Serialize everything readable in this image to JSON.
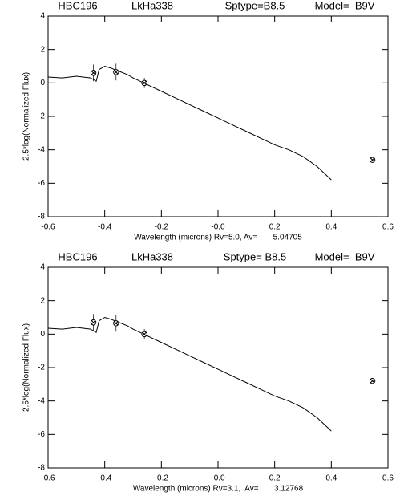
{
  "chart_data": [
    {
      "type": "line",
      "labels": [
        "HBC196",
        "LkHa338",
        "Sptype=B8.5",
        "Model=  B9V"
      ],
      "xlabel": "Wavelength (microns) Rv=5.0, Av=       5.04705",
      "ylabel": "2.5*log(Normalized Flux)",
      "xlim": [
        -0.6,
        0.6
      ],
      "ylim": [
        -8,
        4
      ],
      "xticks": [
        -0.6,
        -0.4,
        -0.2,
        {
          "value": 0,
          "label": "-0.0"
        },
        0.2,
        0.4,
        0.6
      ],
      "yticks": [
        -8,
        -6,
        -4,
        -2,
        0,
        2,
        4
      ],
      "color": "#000000",
      "spectrum": {
        "x": [
          -0.6,
          -0.55,
          -0.5,
          -0.45,
          -0.43,
          -0.42,
          -0.4,
          -0.38,
          -0.35,
          -0.32,
          -0.3,
          -0.25,
          -0.2,
          -0.15,
          -0.1,
          -0.05,
          0,
          0.05,
          0.1,
          0.15,
          0.2,
          0.25,
          0.3,
          0.35,
          0.4
        ],
        "values": [
          0.35,
          0.3,
          0.4,
          0.3,
          0.1,
          0.8,
          1.0,
          0.9,
          0.7,
          0.5,
          0.3,
          -0.1,
          -0.5,
          -0.9,
          -1.3,
          -1.7,
          -2.1,
          -2.5,
          -2.9,
          -3.3,
          -3.7,
          -4.0,
          -4.4,
          -5.0,
          -5.8
        ]
      },
      "points": {
        "x": [
          -0.44,
          -0.36,
          -0.26,
          0.545
        ],
        "values": [
          0.6,
          0.65,
          0.0,
          -4.6
        ],
        "errors": [
          0.5,
          0.5,
          0.3,
          0.1
        ]
      }
    },
    {
      "type": "line",
      "labels": [
        "HBC196",
        "LkHa338",
        "Sptype= B8.5",
        "Model=  B9V"
      ],
      "xlabel": "Wavelength (microns) Rv=3.1,  Av=       3.12768",
      "ylabel": "2.5*log(Normalized Flux)",
      "xlim": [
        -0.6,
        0.6
      ],
      "ylim": [
        -8,
        4
      ],
      "xticks": [
        -0.6,
        -0.4,
        -0.2,
        {
          "value": 0,
          "label": "-0.0"
        },
        0.2,
        0.4,
        0.6
      ],
      "yticks": [
        -8,
        -6,
        -4,
        -2,
        0,
        2,
        4
      ],
      "color": "#000000",
      "spectrum": {
        "x": [
          -0.6,
          -0.55,
          -0.5,
          -0.45,
          -0.43,
          -0.42,
          -0.4,
          -0.38,
          -0.35,
          -0.32,
          -0.3,
          -0.25,
          -0.2,
          -0.15,
          -0.1,
          -0.05,
          0,
          0.05,
          0.1,
          0.15,
          0.2,
          0.25,
          0.3,
          0.35,
          0.4
        ],
        "values": [
          0.35,
          0.3,
          0.4,
          0.3,
          0.1,
          0.8,
          1.0,
          0.9,
          0.7,
          0.5,
          0.3,
          -0.1,
          -0.5,
          -0.9,
          -1.3,
          -1.7,
          -2.1,
          -2.5,
          -2.9,
          -3.3,
          -3.7,
          -4.0,
          -4.4,
          -5.0,
          -5.8
        ]
      },
      "points": {
        "x": [
          -0.44,
          -0.36,
          -0.26,
          0.545
        ],
        "values": [
          0.7,
          0.65,
          0.0,
          -2.8
        ],
        "errors": [
          0.5,
          0.5,
          0.3,
          0.1
        ]
      }
    }
  ]
}
